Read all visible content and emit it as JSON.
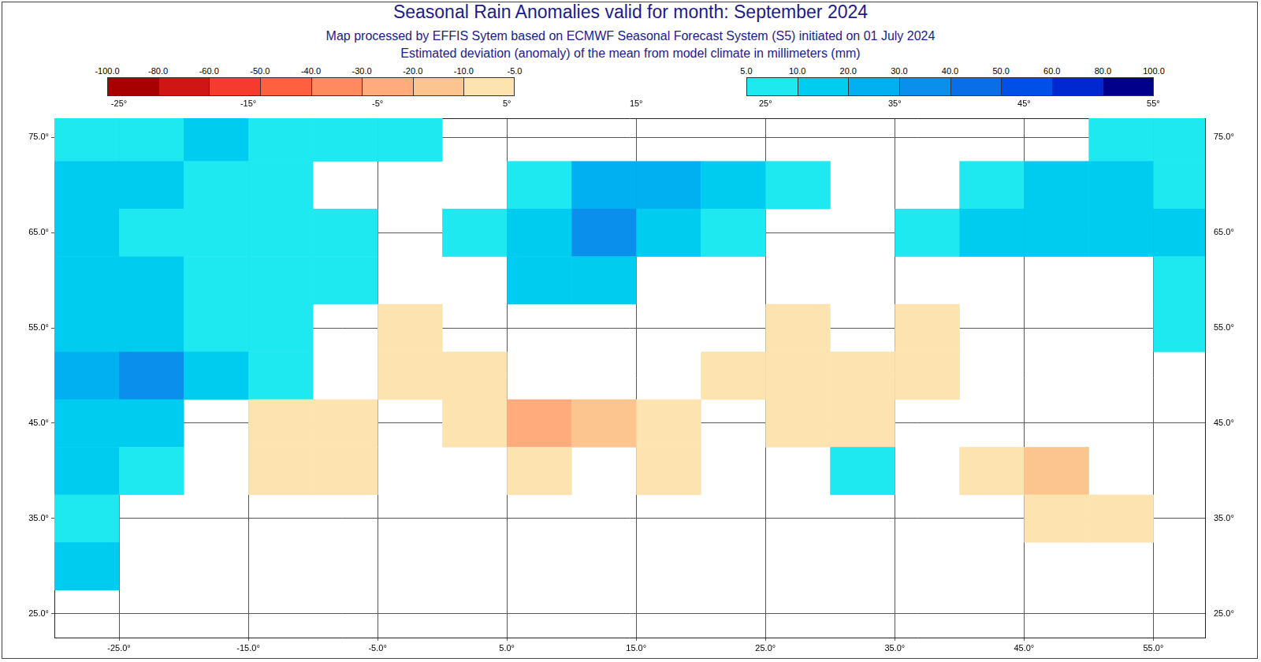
{
  "chart_data": {
    "type": "heatmap",
    "title": "Seasonal Rain Anomalies valid for month: September 2024",
    "subtitle": [
      "Map processed by EFFIS Sytem based on ECMWF Seasonal Forecast System (S5) initiated on 01 July 2024",
      "Estimated deviation (anomaly) of the mean from model climate in millimeters (mm)"
    ],
    "xlim": [
      -30,
      59
    ],
    "ylim": [
      22.5,
      77
    ],
    "xticks": [
      {
        "value": -25,
        "label": "-25.0°"
      },
      {
        "value": -15,
        "label": "-15.0°"
      },
      {
        "value": -5,
        "label": "-5.0°"
      },
      {
        "value": 5,
        "label": "5.0°"
      },
      {
        "value": 15,
        "label": "15.0°"
      },
      {
        "value": 25,
        "label": "25.0°"
      },
      {
        "value": 35,
        "label": "35.0°"
      },
      {
        "value": 45,
        "label": "45.0°"
      },
      {
        "value": 55,
        "label": "55.0°"
      }
    ],
    "x2ticks": [
      {
        "value": -25,
        "label": "-25°"
      },
      {
        "value": -15,
        "label": "-15°"
      },
      {
        "value": -5,
        "label": "-5°"
      },
      {
        "value": 5,
        "label": "5°"
      },
      {
        "value": 15,
        "label": "15°"
      },
      {
        "value": 25,
        "label": "25°"
      },
      {
        "value": 35,
        "label": "35°"
      },
      {
        "value": 45,
        "label": "45°"
      },
      {
        "value": 55,
        "label": "55°"
      }
    ],
    "yticks": [
      {
        "value": 25,
        "label": "25.0°"
      },
      {
        "value": 35,
        "label": "35.0°"
      },
      {
        "value": 45,
        "label": "45.0°"
      },
      {
        "value": 55,
        "label": "55.0°"
      },
      {
        "value": 65,
        "label": "65.0°"
      },
      {
        "value": 75,
        "label": "75.0°"
      }
    ],
    "grid": true,
    "lons": [
      -27.5,
      -22.5,
      -17.5,
      -12.5,
      -7.5,
      -2.5,
      2.5,
      7.5,
      12.5,
      17.5,
      22.5,
      27.5,
      32.5,
      37.5,
      42.5,
      47.5,
      52.5,
      57.5
    ],
    "lats": [
      75,
      70,
      65,
      60,
      55,
      50,
      45,
      40,
      35,
      30,
      25
    ],
    "values": [
      [
        8,
        8,
        10,
        8,
        6,
        6,
        0,
        0,
        0,
        0,
        0,
        0,
        0,
        0,
        0,
        0,
        8,
        8
      ],
      [
        15,
        12,
        8,
        6,
        0,
        0,
        0,
        8,
        20,
        20,
        10,
        8,
        0,
        0,
        8,
        10,
        10,
        8
      ],
      [
        10,
        8,
        8,
        8,
        6,
        0,
        8,
        15,
        30,
        15,
        8,
        0,
        0,
        8,
        10,
        10,
        10,
        10
      ],
      [
        12,
        10,
        8,
        6,
        8,
        0,
        0,
        10,
        10,
        0,
        0,
        0,
        0,
        0,
        0,
        0,
        0,
        8
      ],
      [
        15,
        12,
        8,
        8,
        0,
        -6,
        0,
        0,
        0,
        0,
        0,
        -6,
        0,
        -6,
        0,
        0,
        0,
        8
      ],
      [
        25,
        30,
        10,
        6,
        0,
        -6,
        -8,
        0,
        0,
        0,
        -6,
        -8,
        -8,
        -6,
        0,
        0,
        0,
        0
      ],
      [
        15,
        10,
        0,
        -6,
        -6,
        0,
        -10,
        -25,
        -20,
        -10,
        0,
        -8,
        -6,
        0,
        0,
        0,
        0,
        0
      ],
      [
        10,
        6,
        0,
        -6,
        -6,
        0,
        0,
        -8,
        0,
        -8,
        0,
        0,
        8,
        0,
        -10,
        -15,
        0,
        0
      ],
      [
        8,
        0,
        0,
        0,
        0,
        0,
        0,
        0,
        0,
        0,
        0,
        0,
        0,
        0,
        0,
        -6,
        -6,
        0
      ],
      [
        10,
        0,
        0,
        0,
        0,
        0,
        0,
        0,
        0,
        0,
        0,
        0,
        0,
        0,
        0,
        0,
        0,
        0
      ],
      [
        0,
        0,
        0,
        0,
        0,
        0,
        0,
        0,
        0,
        0,
        0,
        0,
        0,
        0,
        0,
        0,
        0,
        0
      ]
    ],
    "colorbar": {
      "negative": {
        "ticks": [
          {
            "value": -100,
            "label": "-100.0"
          },
          {
            "value": -80,
            "label": "-80.0"
          },
          {
            "value": -60,
            "label": "-60.0"
          },
          {
            "value": -50,
            "label": "-50.0"
          },
          {
            "value": -40,
            "label": "-40.0"
          },
          {
            "value": -30,
            "label": "-30.0"
          },
          {
            "value": -20,
            "label": "-20.0"
          },
          {
            "value": -10,
            "label": "-10.0"
          },
          {
            "value": -5,
            "label": "-5.0"
          }
        ],
        "colors": [
          "#a80000",
          "#d01515",
          "#f53b2e",
          "#ff6040",
          "#ff8a5e",
          "#ffab7c",
          "#fcc590",
          "#fde3b0"
        ]
      },
      "positive": {
        "ticks": [
          {
            "value": 5,
            "label": "5.0"
          },
          {
            "value": 10,
            "label": "10.0"
          },
          {
            "value": 20,
            "label": "20.0"
          },
          {
            "value": 30,
            "label": "30.0"
          },
          {
            "value": 40,
            "label": "40.0"
          },
          {
            "value": 50,
            "label": "50.0"
          },
          {
            "value": 60,
            "label": "60.0"
          },
          {
            "value": 80,
            "label": "80.0"
          },
          {
            "value": 100,
            "label": "100.0"
          }
        ],
        "colors": [
          "#1ee8f0",
          "#00ccf0",
          "#00b0f0",
          "#0a8fec",
          "#0a6ee6",
          "#0050e8",
          "#0028d0",
          "#00008a"
        ]
      }
    }
  }
}
